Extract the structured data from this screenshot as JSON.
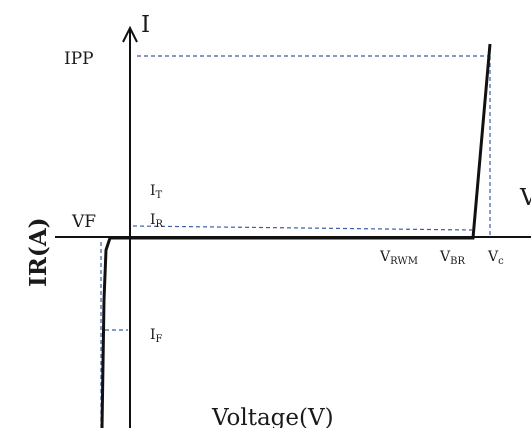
{
  "diagram": {
    "y_axis_symbol": "I",
    "x_axis_symbol": "V",
    "y_axis_title": "IR(A)",
    "x_axis_title": "Voltage(V)",
    "labels": {
      "ipp": "IPP",
      "vf": "VF",
      "it": {
        "main": "I",
        "sub": "T"
      },
      "ir": {
        "main": "I",
        "sub": "R"
      },
      "if": {
        "main": "I",
        "sub": "F"
      },
      "vrwm": {
        "main": "V",
        "sub": "RWM"
      },
      "vbr": {
        "main": "V",
        "sub": "BR"
      },
      "vc": {
        "main": "V",
        "sub": "c"
      }
    },
    "colors": {
      "curve": "#111111",
      "axis": "#111111",
      "dashed_guide": "#3a5fa8"
    }
  }
}
